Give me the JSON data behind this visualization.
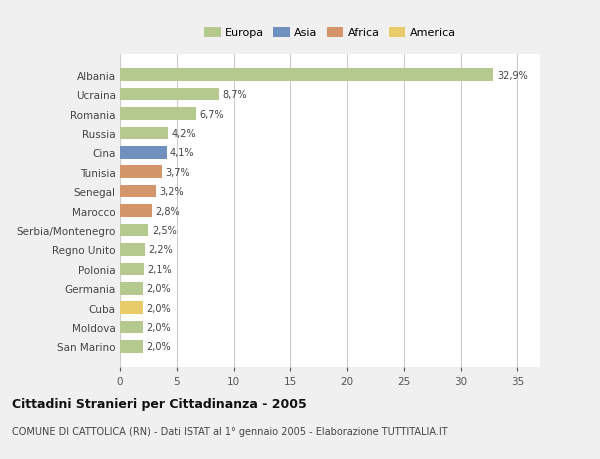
{
  "countries": [
    "Albania",
    "Ucraina",
    "Romania",
    "Russia",
    "Cina",
    "Tunisia",
    "Senegal",
    "Marocco",
    "Serbia/Montenegro",
    "Regno Unito",
    "Polonia",
    "Germania",
    "Cuba",
    "Moldova",
    "San Marino"
  ],
  "values": [
    32.9,
    8.7,
    6.7,
    4.2,
    4.1,
    3.7,
    3.2,
    2.8,
    2.5,
    2.2,
    2.1,
    2.0,
    2.0,
    2.0,
    2.0
  ],
  "labels": [
    "32,9%",
    "8,7%",
    "6,7%",
    "4,2%",
    "4,1%",
    "3,7%",
    "3,2%",
    "2,8%",
    "2,5%",
    "2,2%",
    "2,1%",
    "2,0%",
    "2,0%",
    "2,0%",
    "2,0%"
  ],
  "continent": [
    "Europa",
    "Europa",
    "Europa",
    "Europa",
    "Asia",
    "Africa",
    "Africa",
    "Africa",
    "Europa",
    "Europa",
    "Europa",
    "Europa",
    "America",
    "Europa",
    "Europa"
  ],
  "colors": {
    "Europa": "#b5c98e",
    "Asia": "#7090c0",
    "Africa": "#d4956a",
    "America": "#e8cc6a"
  },
  "xlim": [
    0,
    37
  ],
  "xticks": [
    0,
    5,
    10,
    15,
    20,
    25,
    30,
    35
  ],
  "title": "Cittadini Stranieri per Cittadinanza - 2005",
  "subtitle": "COMUNE DI CATTOLICA (RN) - Dati ISTAT al 1° gennaio 2005 - Elaborazione TUTTITALIA.IT",
  "background_color": "#f0f0f0",
  "plot_background": "#ffffff",
  "grid_color": "#cccccc"
}
